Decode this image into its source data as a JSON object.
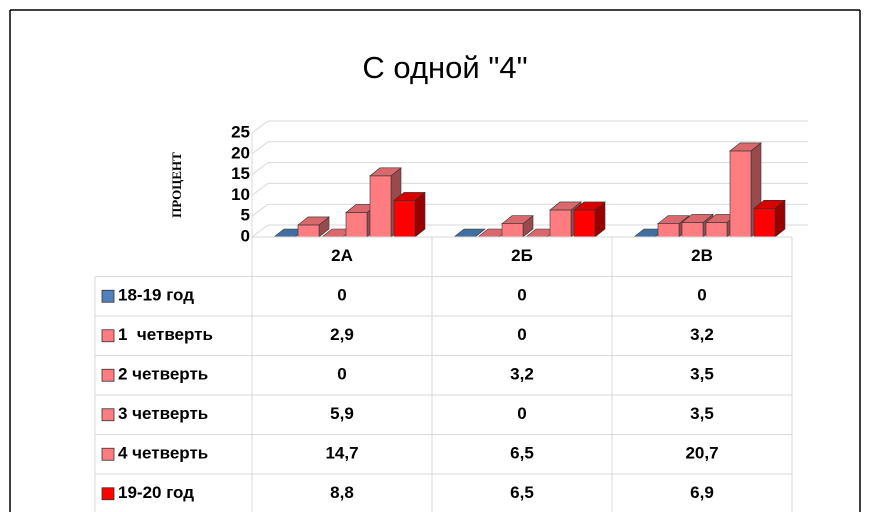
{
  "chart_data": {
    "type": "bar3d_table",
    "title": "С одной \"4\"",
    "y_label": "ПРОЦЕНТ",
    "categories": [
      "2А",
      "2Б",
      "2В"
    ],
    "ylim": [
      0,
      25
    ],
    "yticks": [
      0,
      5,
      10,
      15,
      20,
      25
    ],
    "grid": true,
    "series": [
      {
        "name": "18-19 год",
        "color": "#4f81bd",
        "values": [
          0,
          0,
          0
        ],
        "value_labels": [
          "0",
          "0",
          "0"
        ]
      },
      {
        "name": "1  четверть",
        "color": "#ff7c80",
        "values": [
          2.9,
          0,
          3.2
        ],
        "value_labels": [
          "2,9",
          "0",
          "3,2"
        ]
      },
      {
        "name": "2 четверть",
        "color": "#ff7c80",
        "values": [
          0,
          3.2,
          3.5
        ],
        "value_labels": [
          "0",
          "3,2",
          "3,5"
        ]
      },
      {
        "name": "3 четверть",
        "color": "#ff7c80",
        "values": [
          5.9,
          0,
          3.5
        ],
        "value_labels": [
          "5,9",
          "0",
          "3,5"
        ]
      },
      {
        "name": "4 четверть",
        "color": "#ff7c80",
        "values": [
          14.7,
          6.5,
          20.7
        ],
        "value_labels": [
          "14,7",
          "6,5",
          "20,7"
        ]
      },
      {
        "name": "19-20 год",
        "color": "#ff0000",
        "values": [
          8.8,
          6.5,
          6.9
        ],
        "value_labels": [
          "8,8",
          "6,5",
          "6,9"
        ]
      }
    ]
  }
}
